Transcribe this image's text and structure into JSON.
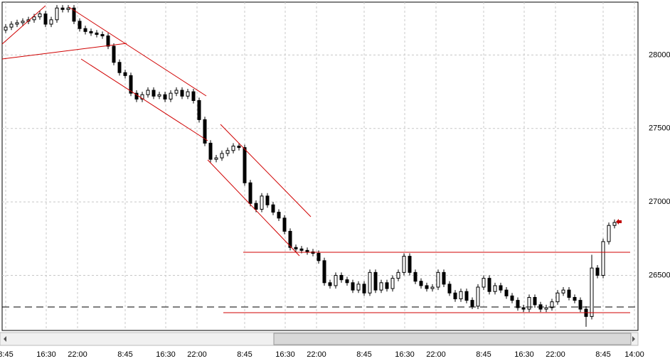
{
  "chart_data": {
    "type": "candlestick",
    "xlim": [
      -0.625,
      111.125
    ],
    "xticks": [
      {
        "value": 0,
        "label": "8:45"
      },
      {
        "value": 7.125,
        "label": "16:30"
      },
      {
        "value": 12.625,
        "label": "22:00"
      },
      {
        "value": 21,
        "label": "8:45"
      },
      {
        "value": 28.125,
        "label": "16:30"
      },
      {
        "value": 33.625,
        "label": "22:00"
      },
      {
        "value": 42,
        "label": "8:45"
      },
      {
        "value": 49.125,
        "label": "16:30"
      },
      {
        "value": 54.625,
        "label": "22:00"
      },
      {
        "value": 63,
        "label": "8:45"
      },
      {
        "value": 70.125,
        "label": "16:30"
      },
      {
        "value": 75.625,
        "label": "22:00"
      },
      {
        "value": 84,
        "label": "8:45"
      },
      {
        "value": 91.125,
        "label": "16:30"
      },
      {
        "value": 96.625,
        "label": "22:00"
      },
      {
        "value": 105,
        "label": "8:45"
      },
      {
        "value": 110.5,
        "label": "14:00"
      }
    ],
    "ylim": [
      26125,
      28360
    ],
    "yticks": [
      26500,
      27000,
      27500,
      28000
    ],
    "grid": true,
    "up_color": "#ffffff",
    "down_color": "#000000",
    "open": [
      28170,
      28190,
      28210,
      28220,
      28230,
      28240,
      28260,
      28280,
      28210,
      28240,
      28320,
      28310,
      28320,
      28230,
      28180,
      28160,
      28150,
      28140,
      28130,
      28060,
      27950,
      27880,
      27860,
      27740,
      27700,
      27730,
      27760,
      27720,
      27730,
      27700,
      27740,
      27760,
      27720,
      27750,
      27690,
      27560,
      27400,
      27290,
      27300,
      27330,
      27350,
      27380,
      27370,
      27130,
      26990,
      26950,
      27040,
      26980,
      26930,
      26890,
      26800,
      26690,
      26680,
      26670,
      26660,
      26650,
      26600,
      26450,
      26430,
      26500,
      26470,
      26450,
      26400,
      26440,
      26380,
      26520,
      26400,
      26450,
      26410,
      26480,
      26520,
      26630,
      26520,
      26460,
      26430,
      26410,
      26420,
      26520,
      26440,
      26380,
      26340,
      26390,
      26330,
      26290,
      26420,
      26480,
      26390,
      26430,
      26400,
      26360,
      26330,
      26280,
      26270,
      26350,
      26300,
      26270,
      26280,
      26320,
      26380,
      26400,
      26350,
      26330,
      26270,
      26220,
      26550,
      26500,
      26730,
      26840
    ],
    "high": [
      28210,
      28230,
      28240,
      28250,
      28260,
      28280,
      28300,
      28300,
      28260,
      28340,
      28340,
      28340,
      28340,
      28250,
      28200,
      28180,
      28170,
      28160,
      28150,
      28080,
      27970,
      27900,
      27880,
      27760,
      27750,
      27780,
      27780,
      27750,
      27750,
      27760,
      27780,
      27780,
      27770,
      27770,
      27710,
      27580,
      27420,
      27320,
      27350,
      27370,
      27400,
      27400,
      27390,
      27150,
      27010,
      27060,
      27060,
      27000,
      26950,
      26910,
      26820,
      26710,
      26700,
      26690,
      26680,
      26670,
      26620,
      26470,
      26520,
      26520,
      26490,
      26470,
      26460,
      26460,
      26540,
      26540,
      26470,
      26470,
      26500,
      26540,
      26650,
      26650,
      26540,
      26480,
      26450,
      26440,
      26540,
      26540,
      26460,
      26400,
      26410,
      26410,
      26350,
      26440,
      26500,
      26500,
      26450,
      26450,
      26420,
      26380,
      26350,
      26300,
      26370,
      26370,
      26320,
      26300,
      26340,
      26400,
      26420,
      26420,
      26370,
      26350,
      26290,
      26640,
      26570,
      26750,
      26860,
      26880
    ],
    "low": [
      28150,
      28170,
      28190,
      28200,
      28210,
      28220,
      28240,
      28190,
      28190,
      28220,
      28290,
      28290,
      28210,
      28160,
      28140,
      28130,
      28120,
      28110,
      28040,
      27930,
      27860,
      27840,
      27720,
      27680,
      27680,
      27710,
      27700,
      27700,
      27680,
      27680,
      27720,
      27700,
      27700,
      27670,
      27540,
      27380,
      27270,
      27270,
      27280,
      27310,
      27330,
      27350,
      27110,
      26970,
      26930,
      26930,
      26960,
      26910,
      26870,
      26780,
      26670,
      26660,
      26650,
      26640,
      26630,
      26580,
      26430,
      26410,
      26410,
      26450,
      26430,
      26380,
      26380,
      26360,
      26360,
      26380,
      26380,
      26390,
      26390,
      26460,
      26500,
      26500,
      26440,
      26410,
      26390,
      26390,
      26400,
      26420,
      26360,
      26320,
      26320,
      26310,
      26270,
      26270,
      26400,
      26370,
      26370,
      26380,
      26340,
      26310,
      26260,
      26250,
      26250,
      26280,
      26250,
      26250,
      26260,
      26300,
      26360,
      26330,
      26310,
      26250,
      26150,
      26200,
      26480,
      26480,
      26710,
      26820
    ],
    "close": [
      28190,
      28210,
      28220,
      28230,
      28240,
      28260,
      28280,
      28210,
      28240,
      28320,
      28310,
      28320,
      28230,
      28180,
      28160,
      28150,
      28140,
      28130,
      28060,
      27950,
      27880,
      27860,
      27740,
      27700,
      27730,
      27760,
      27720,
      27730,
      27700,
      27740,
      27760,
      27720,
      27750,
      27690,
      27560,
      27400,
      27290,
      27300,
      27330,
      27350,
      27380,
      27370,
      27130,
      26990,
      26950,
      27040,
      26980,
      26930,
      26890,
      26800,
      26690,
      26680,
      26670,
      26660,
      26650,
      26600,
      26450,
      26430,
      26500,
      26470,
      26450,
      26400,
      26440,
      26380,
      26520,
      26400,
      26450,
      26410,
      26480,
      26520,
      26630,
      26520,
      26460,
      26430,
      26410,
      26420,
      26520,
      26440,
      26380,
      26340,
      26390,
      26330,
      26290,
      26420,
      26480,
      26390,
      26430,
      26400,
      26360,
      26330,
      26280,
      26270,
      26350,
      26300,
      26270,
      26280,
      26320,
      26380,
      26400,
      26350,
      26330,
      26270,
      26220,
      26550,
      26500,
      26730,
      26840,
      26860
    ]
  }
}
